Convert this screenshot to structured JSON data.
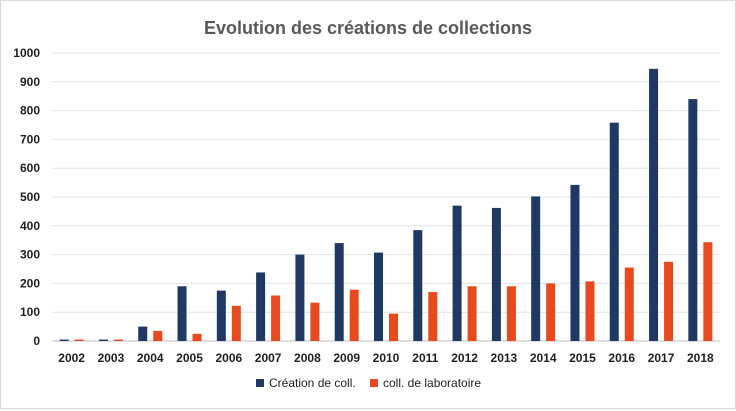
{
  "chart_data": {
    "type": "bar",
    "title": "Evolution des créations de collections",
    "xlabel": "",
    "ylabel": "",
    "ylim": [
      0,
      1000
    ],
    "yticks": [
      0,
      100,
      200,
      300,
      400,
      500,
      600,
      700,
      800,
      900,
      1000
    ],
    "grid": true,
    "legend_position": "bottom",
    "categories": [
      "2002",
      "2003",
      "2004",
      "2005",
      "2006",
      "2007",
      "2008",
      "2009",
      "2010",
      "2011",
      "2012",
      "2013",
      "2014",
      "2015",
      "2016",
      "2017",
      "2018"
    ],
    "series": [
      {
        "name": "Création de coll.",
        "color": "#1f3864",
        "values": [
          5,
          5,
          50,
          190,
          175,
          238,
          300,
          340,
          307,
          385,
          470,
          462,
          502,
          542,
          758,
          945,
          840
        ]
      },
      {
        "name": "coll. de laboratoire",
        "color": "#e8491d",
        "values": [
          5,
          5,
          35,
          25,
          122,
          158,
          133,
          178,
          95,
          170,
          190,
          190,
          200,
          207,
          255,
          275,
          343
        ]
      }
    ]
  }
}
